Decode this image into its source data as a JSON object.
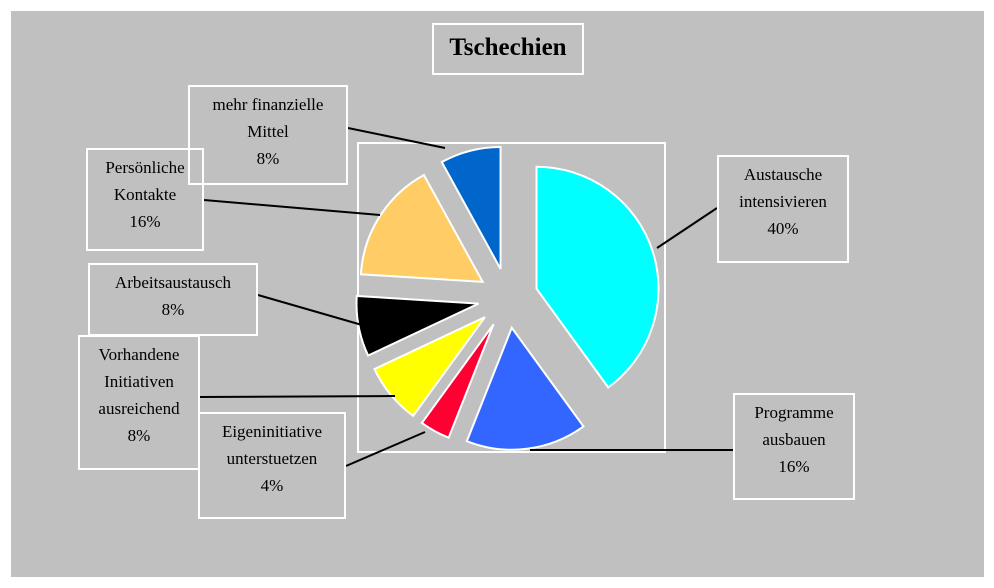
{
  "chart_data": {
    "type": "pie",
    "title": "Tschechien",
    "categories": [
      "Austausche intensivieren",
      "Programme ausbauen",
      "Eigeninitiative unterstuetzen",
      "Vorhandene Initiativen ausreichend",
      "Arbeitsaustausch",
      "Persönliche Kontakte",
      "mehr finanzielle Mittel"
    ],
    "values": [
      40,
      16,
      4,
      8,
      8,
      16,
      8
    ],
    "value_labels": [
      "40%",
      "16%",
      "4%",
      "8%",
      "8%",
      "16%",
      "8%"
    ],
    "colors": [
      "#00FFFF",
      "#3366FF",
      "#FF0033",
      "#FFFF00",
      "#000000",
      "#FFCC66",
      "#0066CC"
    ]
  }
}
